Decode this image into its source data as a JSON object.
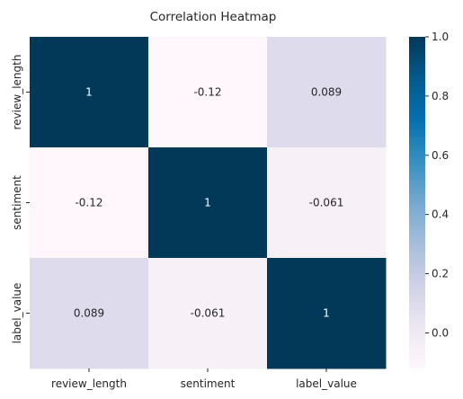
{
  "chart_data": {
    "type": "heatmap",
    "title": "Correlation Heatmap",
    "x_labels": [
      "review_length",
      "sentiment",
      "label_value"
    ],
    "y_labels": [
      "review_length",
      "sentiment",
      "label_value"
    ],
    "matrix": [
      [
        1,
        -0.12,
        0.089
      ],
      [
        -0.12,
        1,
        -0.061
      ],
      [
        0.089,
        -0.061,
        1
      ]
    ],
    "annotations": [
      [
        "1",
        "-0.12",
        "0.089"
      ],
      [
        "-0.12",
        "1",
        "-0.061"
      ],
      [
        "0.089",
        "-0.061",
        "1"
      ]
    ],
    "colorbar": {
      "range": [
        -0.12,
        1
      ],
      "ticks": [
        0.0,
        0.2,
        0.4,
        0.6,
        0.8,
        1.0
      ],
      "tick_labels": [
        "0.0",
        "0.2",
        "0.4",
        "0.6",
        "0.8",
        "1.0"
      ],
      "colormap": "PuBu",
      "stops": [
        "#fff7fb",
        "#ece7f2",
        "#d0d1e6",
        "#a6bddb",
        "#74a9cf",
        "#3690c0",
        "#0570b0",
        "#045a8d",
        "#023858"
      ]
    },
    "grid": false
  }
}
